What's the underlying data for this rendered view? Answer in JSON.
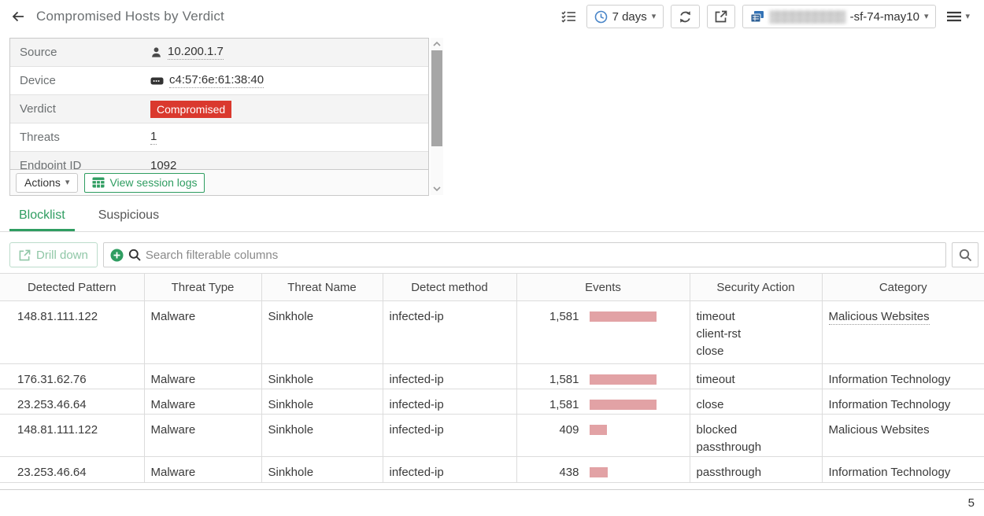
{
  "colors": {
    "accent_green": "#2f9d61",
    "badge_red": "#da392e",
    "events_bar_pink": "#e2a2a5",
    "clock_icon_blue": "#4a86c8",
    "device_icon_blue": "#3272b5"
  },
  "glyphs": {
    "caret_down": "▾"
  },
  "header": {
    "title": "Compromised Hosts by Verdict",
    "time_range": "7 days",
    "device": {
      "masked": "▒▒▒▒▒▒▒▒▒▒",
      "suffix": "-sf-74-may10"
    }
  },
  "detail_panel": {
    "rows": [
      {
        "label": "Source",
        "value": "10.200.1.7"
      },
      {
        "label": "Device",
        "value": "c4:57:6e:61:38:40"
      },
      {
        "label": "Verdict",
        "value": "Compromised"
      },
      {
        "label": "Threats",
        "value": "1"
      },
      {
        "label": "Endpoint ID",
        "value": "1092"
      }
    ],
    "actions_label": "Actions",
    "view_session_logs_label": "View session logs"
  },
  "tabs": [
    {
      "label": "Blocklist"
    },
    {
      "label": "Suspicious"
    }
  ],
  "filter_bar": {
    "drill_down_label": "Drill down",
    "search_placeholder": "Search filterable columns"
  },
  "table": {
    "columns": [
      "Detected Pattern",
      "Threat Type",
      "Threat Name",
      "Detect method",
      "Events",
      "Security Action",
      "Category"
    ],
    "rows": [
      {
        "detected_pattern": "148.81.111.122",
        "threat_type": "Malware",
        "threat_name": "Sinkhole",
        "detect_method": "infected-ip",
        "events": "1,581",
        "events_bar_pct": 100,
        "security_action": "timeout\nclient-rst\nclose",
        "category": "Malicious Websites"
      },
      {
        "detected_pattern": "176.31.62.76",
        "threat_type": "Malware",
        "threat_name": "Sinkhole",
        "detect_method": "infected-ip",
        "events": "1,581",
        "events_bar_pct": 100,
        "security_action": "timeout",
        "category": "Information Technology"
      },
      {
        "detected_pattern": "23.253.46.64",
        "threat_type": "Malware",
        "threat_name": "Sinkhole",
        "detect_method": "infected-ip",
        "events": "1,581",
        "events_bar_pct": 100,
        "security_action": "close",
        "category": "Information Technology"
      },
      {
        "detected_pattern": "148.81.111.122",
        "threat_type": "Malware",
        "threat_name": "Sinkhole",
        "detect_method": "infected-ip",
        "events": "409",
        "events_bar_pct": 26,
        "security_action": "blocked\npassthrough",
        "category": "Malicious Websites"
      },
      {
        "detected_pattern": "23.253.46.64",
        "threat_type": "Malware",
        "threat_name": "Sinkhole",
        "detect_method": "infected-ip",
        "events": "438",
        "events_bar_pct": 28,
        "security_action": "passthrough",
        "category": "Information Technology"
      }
    ]
  },
  "pagination": {
    "current_page": "5"
  }
}
